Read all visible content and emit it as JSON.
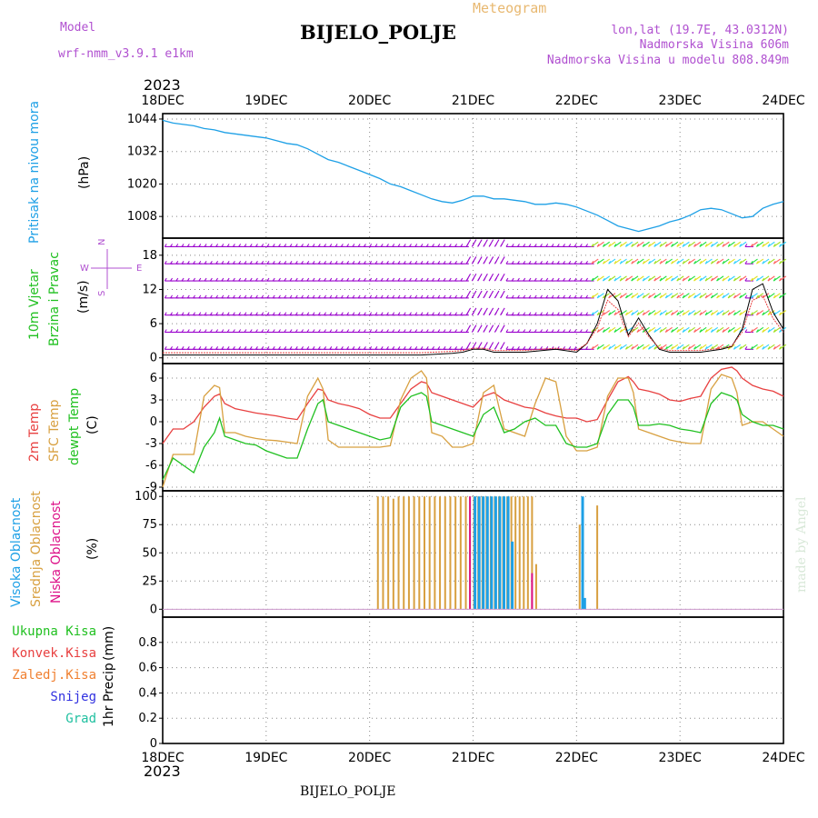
{
  "header": {
    "model_label": "Model",
    "model_name": "wrf-nmm_v3.9.1 e1km",
    "meteogram": "Meteogram",
    "station": "BIJELO_POLJE",
    "lonlat": "lon,lat (19.7E, 43.0312N)",
    "elevation": "Nadmorska Visina 606m",
    "model_elevation": "Nadmorska Visina u modelu 808.849m",
    "footer_station": "BIJELO_POLJE",
    "credit": "made by Angel"
  },
  "x_axis": {
    "year_top": "2023",
    "year_bottom": "2023",
    "days": [
      "18DEC",
      "19DEC",
      "20DEC",
      "21DEC",
      "22DEC",
      "23DEC",
      "24DEC"
    ]
  },
  "colors": {
    "pressure": "#1ea0e6",
    "temp2m": "#e84040",
    "sfc": "#d8a040",
    "dewpt": "#20c020",
    "wind_barb": "#9900cc",
    "high_cloud": "#1ea0e6",
    "mid_cloud": "#d8a040",
    "low_cloud": "#dd1188",
    "purple_text": "#b050d0"
  },
  "chart_data": [
    {
      "type": "line",
      "panel": "pressure",
      "ylabel_1": "Pritisak na nivou mora",
      "ylabel_2": "(hPa)",
      "ylim": [
        1000,
        1046
      ],
      "yticks": [
        1008,
        1020,
        1032,
        1044
      ],
      "grid": true,
      "x_days": [
        0,
        0.1,
        0.2,
        0.3,
        0.4,
        0.5,
        0.6,
        0.7,
        0.8,
        0.9,
        1,
        1.1,
        1.2,
        1.3,
        1.4,
        1.5,
        1.6,
        1.7,
        1.8,
        1.9,
        2,
        2.1,
        2.2,
        2.3,
        2.4,
        2.5,
        2.6,
        2.7,
        2.8,
        2.9,
        3,
        3.1,
        3.2,
        3.3,
        3.4,
        3.5,
        3.6,
        3.7,
        3.8,
        3.9,
        4,
        4.1,
        4.2,
        4.3,
        4.4,
        4.5,
        4.6,
        4.7,
        4.8,
        4.9,
        5,
        5.1,
        5.2,
        5.3,
        5.4,
        5.5,
        5.6,
        5.7,
        5.8,
        5.9,
        6
      ],
      "series": [
        {
          "values": [
            1043.5,
            1042.5,
            1042,
            1041.5,
            1040.5,
            1040,
            1039,
            1038.5,
            1038,
            1037.5,
            1037,
            1036,
            1035,
            1034.5,
            1033,
            1031,
            1029,
            1028,
            1026.5,
            1025,
            1023.5,
            1022,
            1020,
            1019,
            1017.5,
            1016,
            1014.5,
            1013.5,
            1013,
            1014,
            1015.5,
            1015.5,
            1014.5,
            1014.5,
            1014,
            1013.5,
            1012.5,
            1012.5,
            1013,
            1012.5,
            1011.5,
            1010,
            1008.5,
            1006.5,
            1004.5,
            1003.5,
            1002.5,
            1003.5,
            1004.5,
            1006,
            1007,
            1008.5,
            1010.5,
            1011,
            1010.5,
            1009,
            1007.5,
            1008,
            1011,
            1012.5,
            1013.5
          ]
        }
      ]
    },
    {
      "type": "barbs",
      "panel": "wind",
      "ylabel_1": "10m Vjetar",
      "ylabel_2": "Brzina i Pravac",
      "ylabel_3": "(m/s)",
      "compass": "N S E W",
      "ylim": [
        -1,
        21
      ],
      "yticks": [
        0,
        6,
        12,
        18
      ],
      "grid": true,
      "barb_levels": [
        1.5,
        4.5,
        7.5,
        10.5,
        13.5,
        16.5,
        19.5
      ],
      "x_days": [
        0,
        0.5,
        1,
        1.5,
        2,
        2.5,
        2.8,
        2.9,
        3,
        3.1,
        3.2,
        3.5,
        3.8,
        4,
        4.1,
        4.2,
        4.3,
        4.4,
        4.5,
        4.6,
        4.7,
        4.8,
        4.9,
        5,
        5.2,
        5.4,
        5.5,
        5.6,
        5.7,
        5.8,
        5.9,
        6
      ],
      "series": [
        {
          "name": "speed",
          "values": [
            0.5,
            0.5,
            0.5,
            0.5,
            0.5,
            0.5,
            0.8,
            1,
            1.5,
            1.5,
            1,
            1,
            1.5,
            1,
            2.5,
            6,
            12,
            10,
            4,
            7,
            4,
            1.5,
            1,
            1,
            1,
            1.5,
            2,
            5,
            12,
            13,
            8,
            5
          ]
        }
      ]
    },
    {
      "type": "line",
      "panel": "temperature",
      "ylabel_1": "2m Temp",
      "ylabel_2": "SFC Temp",
      "ylabel_3": "dewpt Temp",
      "ylabel_4": "(C)",
      "ylim": [
        -9.5,
        8
      ],
      "yticks": [
        -9,
        -6,
        -3,
        0,
        3,
        6
      ],
      "grid": true,
      "x_days": [
        0,
        0.1,
        0.2,
        0.3,
        0.4,
        0.5,
        0.55,
        0.6,
        0.7,
        0.8,
        0.9,
        1,
        1.1,
        1.2,
        1.3,
        1.4,
        1.5,
        1.55,
        1.6,
        1.7,
        1.8,
        1.9,
        2,
        2.1,
        2.2,
        2.3,
        2.4,
        2.5,
        2.55,
        2.6,
        2.7,
        2.8,
        2.9,
        3,
        3.1,
        3.2,
        3.3,
        3.4,
        3.5,
        3.6,
        3.7,
        3.8,
        3.9,
        4,
        4.1,
        4.2,
        4.3,
        4.4,
        4.5,
        4.55,
        4.6,
        4.7,
        4.8,
        4.9,
        5,
        5.1,
        5.2,
        5.3,
        5.4,
        5.5,
        5.55,
        5.6,
        5.7,
        5.8,
        5.9,
        6
      ],
      "series": [
        {
          "name": "2m Temp",
          "values": [
            -3,
            -1,
            -1,
            0,
            2,
            3.5,
            3.8,
            2.5,
            1.8,
            1.5,
            1.2,
            1,
            0.8,
            0.5,
            0.3,
            2.5,
            4.5,
            4.3,
            3,
            2.5,
            2.2,
            1.8,
            1,
            0.5,
            0.5,
            2.5,
            4.5,
            5.5,
            5.3,
            4,
            3.5,
            3,
            2.5,
            2,
            3.5,
            4,
            3,
            2.5,
            2,
            1.8,
            1.2,
            0.8,
            0.5,
            0.5,
            0,
            0.3,
            3,
            5.5,
            6.2,
            5.5,
            4.5,
            4.2,
            3.8,
            3,
            2.8,
            3.2,
            3.5,
            6,
            7.2,
            7.5,
            7,
            6,
            5,
            4.5,
            4.2,
            3.5
          ]
        },
        {
          "name": "SFC Temp",
          "values": [
            -9,
            -4.5,
            -4.5,
            -4.5,
            3.5,
            5,
            4.7,
            -1.5,
            -1.5,
            -2,
            -2.3,
            -2.5,
            -2.6,
            -2.8,
            -3,
            3.5,
            6,
            4.5,
            -2.5,
            -3.5,
            -3.5,
            -3.5,
            -3.5,
            -3.5,
            -3.3,
            3,
            6,
            7,
            6,
            -1.5,
            -2,
            -3.5,
            -3.5,
            -3,
            4,
            5,
            -1,
            -1.5,
            -2,
            2.5,
            6,
            5.5,
            -2,
            -4,
            -4,
            -3.5,
            3.5,
            6,
            6,
            4,
            -1,
            -1.5,
            -2,
            -2.5,
            -2.8,
            -3,
            -3,
            4.5,
            6.5,
            6,
            4,
            -0.5,
            0,
            0,
            -1,
            -2
          ]
        },
        {
          "name": "dewpt Temp",
          "values": [
            -8,
            -5,
            -6,
            -7,
            -3.5,
            -1.5,
            0.5,
            -2,
            -2.5,
            -3,
            -3.2,
            -4,
            -4.5,
            -5,
            -5,
            -1,
            2.5,
            3,
            0,
            -0.5,
            -1,
            -1.5,
            -2,
            -2.5,
            -2.2,
            2,
            3.5,
            4,
            3.5,
            0,
            -0.5,
            -1,
            -1.5,
            -2,
            1,
            2,
            -1.5,
            -1,
            0,
            0.5,
            -0.5,
            -0.5,
            -3,
            -3.5,
            -3.5,
            -3,
            1,
            3,
            3,
            2,
            -0.5,
            -0.5,
            -0.3,
            -0.5,
            -1,
            -1.2,
            -1.5,
            2.5,
            4,
            3.5,
            3,
            1,
            0,
            -0.5,
            -0.5,
            -1
          ]
        }
      ]
    },
    {
      "type": "bar",
      "panel": "cloud",
      "ylabel_1": "Visoka Oblacnost",
      "ylabel_2": "Srednja Oblacnost",
      "ylabel_3": "Niska Oblacnost",
      "ylabel_4": "(%)",
      "ylim": [
        -7,
        105
      ],
      "yticks": [
        0,
        25,
        50,
        75,
        100
      ],
      "grid": true,
      "x_days": [
        2.08,
        2.13,
        2.18,
        2.23,
        2.28,
        2.33,
        2.38,
        2.43,
        2.48,
        2.53,
        2.58,
        2.63,
        2.68,
        2.73,
        2.78,
        2.83,
        2.88,
        2.93,
        2.97,
        3.01,
        3.05,
        3.09,
        3.13,
        3.17,
        3.21,
        3.25,
        3.29,
        3.33,
        3.37,
        3.41,
        3.45,
        3.49,
        3.53,
        3.57,
        3.61,
        4.03,
        4.05,
        4.07,
        4.2
      ],
      "series": [
        {
          "name": "mid",
          "values": [
            100,
            100,
            100,
            98,
            100,
            100,
            100,
            100,
            100,
            100,
            100,
            100,
            100,
            100,
            100,
            100,
            100,
            100,
            100,
            100,
            100,
            100,
            100,
            100,
            100,
            100,
            100,
            100,
            100,
            100,
            100,
            100,
            100,
            100,
            40,
            75,
            0,
            0,
            92
          ]
        },
        {
          "name": "high",
          "values": [
            0,
            0,
            0,
            0,
            0,
            0,
            0,
            0,
            0,
            0,
            0,
            0,
            0,
            0,
            0,
            0,
            0,
            0,
            0,
            100,
            100,
            100,
            100,
            100,
            100,
            100,
            100,
            100,
            60,
            0,
            0,
            0,
            0,
            0,
            0,
            0,
            100,
            10,
            0
          ]
        },
        {
          "name": "low",
          "values": [
            0,
            0,
            0,
            0,
            0,
            0,
            0,
            0,
            0,
            0,
            0,
            0,
            0,
            0,
            0,
            0,
            0,
            0,
            100,
            0,
            0,
            0,
            0,
            0,
            0,
            0,
            0,
            0,
            0,
            0,
            0,
            0,
            0,
            32,
            0,
            0,
            0,
            0,
            0
          ]
        }
      ]
    },
    {
      "type": "bar",
      "panel": "precip",
      "ylabel_1": "1hr Precip",
      "ylabel_2": "(mm)",
      "ylim": [
        0,
        1
      ],
      "yticks": [
        0,
        0.2,
        0.4,
        0.6,
        0.8
      ],
      "grid": true,
      "legend": [
        "Ukupna Kisa",
        "Konvek.Kisa",
        "Zaledj.Kisa",
        "Snijeg",
        "Grad"
      ],
      "legend_colors": [
        "#20c020",
        "#e84040",
        "#f08030",
        "#3030e0",
        "#20c0a0"
      ],
      "series": []
    }
  ]
}
